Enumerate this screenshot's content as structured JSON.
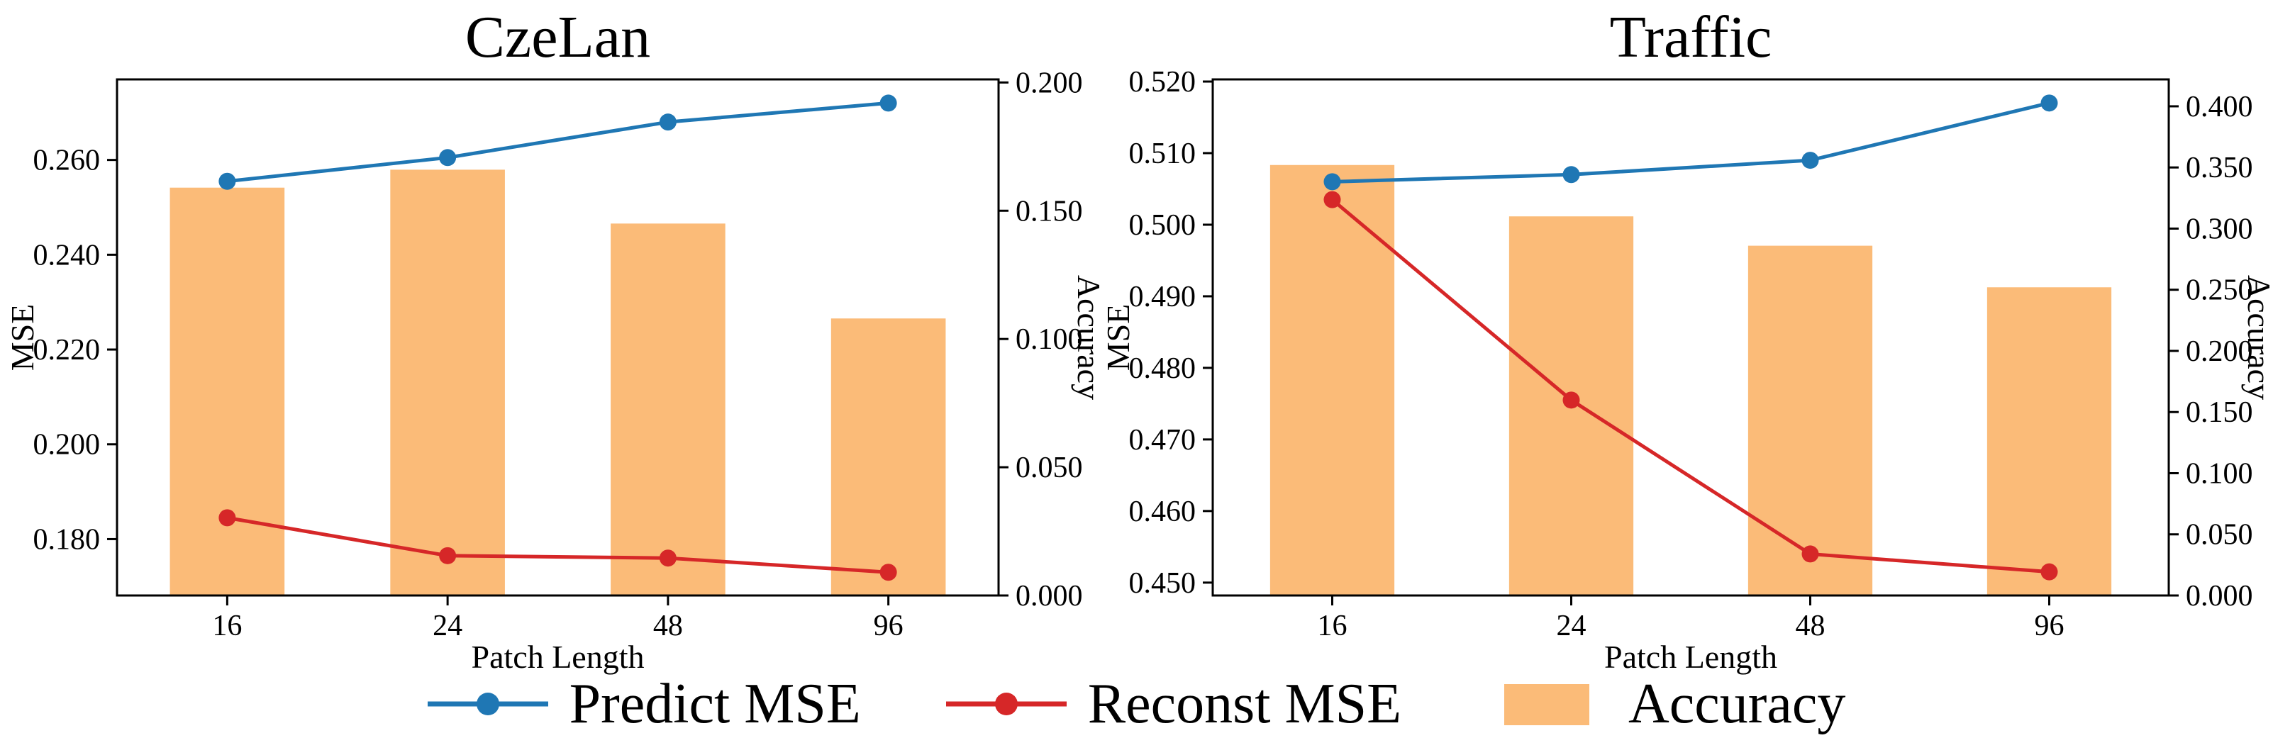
{
  "legend": {
    "items": [
      {
        "label": "Predict MSE",
        "glyph": "line-marker",
        "color": "#1f77b4"
      },
      {
        "label": "Reconst MSE",
        "glyph": "line-marker",
        "color": "#d62728"
      },
      {
        "label": "Accuracy",
        "glyph": "bar",
        "color": "#fbbb78"
      }
    ]
  },
  "chart_data": [
    {
      "type": "line+bar",
      "title": "CzeLan",
      "xlabel": "Patch Length",
      "ylabel_left": "MSE",
      "ylabel_right": "Accuracy",
      "categories": [
        "16",
        "24",
        "48",
        "96"
      ],
      "series": [
        {
          "name": "Predict MSE",
          "type": "line",
          "axis": "left",
          "color": "#1f77b4",
          "values": [
            0.2555,
            0.2605,
            0.268,
            0.272
          ]
        },
        {
          "name": "Reconst MSE",
          "type": "line",
          "axis": "left",
          "color": "#d62728",
          "values": [
            0.1845,
            0.1765,
            0.176,
            0.173
          ]
        },
        {
          "name": "Accuracy",
          "type": "bar",
          "axis": "right",
          "color": "#fbbb78",
          "values": [
            0.159,
            0.166,
            0.145,
            0.108
          ]
        }
      ],
      "ylim_left": [
        0.1681,
        0.277
      ],
      "yticks_left": {
        "values": [
          0.18,
          0.2,
          0.22,
          0.24,
          0.26
        ],
        "labels": [
          "0.180",
          "0.200",
          "0.220",
          "0.240",
          "0.260"
        ]
      },
      "ylim_right": [
        0,
        0.2012
      ],
      "yticks_right": {
        "values": [
          0,
          0.05,
          0.1,
          0.15,
          0.2
        ],
        "labels": [
          "0.000",
          "0.050",
          "0.100",
          "0.150",
          "0.200"
        ]
      },
      "grid": false,
      "legend_position": "shared-bottom-center"
    },
    {
      "type": "line+bar",
      "title": "Traffic",
      "xlabel": "Patch Length",
      "ylabel_left": "MSE",
      "ylabel_right": "Accuracy",
      "categories": [
        "16",
        "24",
        "48",
        "96"
      ],
      "series": [
        {
          "name": "Predict MSE",
          "type": "line",
          "axis": "left",
          "color": "#1f77b4",
          "values": [
            0.506,
            0.507,
            0.509,
            0.517
          ]
        },
        {
          "name": "Reconst MSE",
          "type": "line",
          "axis": "left",
          "color": "#d62728",
          "values": [
            0.5035,
            0.4755,
            0.454,
            0.4515
          ]
        },
        {
          "name": "Accuracy",
          "type": "bar",
          "axis": "right",
          "color": "#fbbb78",
          "values": [
            0.352,
            0.31,
            0.286,
            0.252
          ]
        }
      ],
      "ylim_left": [
        0.4482,
        0.5203
      ],
      "yticks_left": {
        "values": [
          0.45,
          0.46,
          0.47,
          0.48,
          0.49,
          0.5,
          0.51,
          0.52
        ],
        "labels": [
          "0.450",
          "0.460",
          "0.470",
          "0.480",
          "0.490",
          "0.500",
          "0.510",
          "0.520"
        ]
      },
      "ylim_right": [
        0,
        0.422
      ],
      "yticks_right": {
        "values": [
          0,
          0.05,
          0.1,
          0.15,
          0.2,
          0.25,
          0.3,
          0.35,
          0.4
        ],
        "labels": [
          "0.000",
          "0.050",
          "0.100",
          "0.150",
          "0.200",
          "0.250",
          "0.300",
          "0.350",
          "0.400"
        ]
      },
      "grid": false,
      "legend_position": "shared-bottom-center"
    }
  ]
}
